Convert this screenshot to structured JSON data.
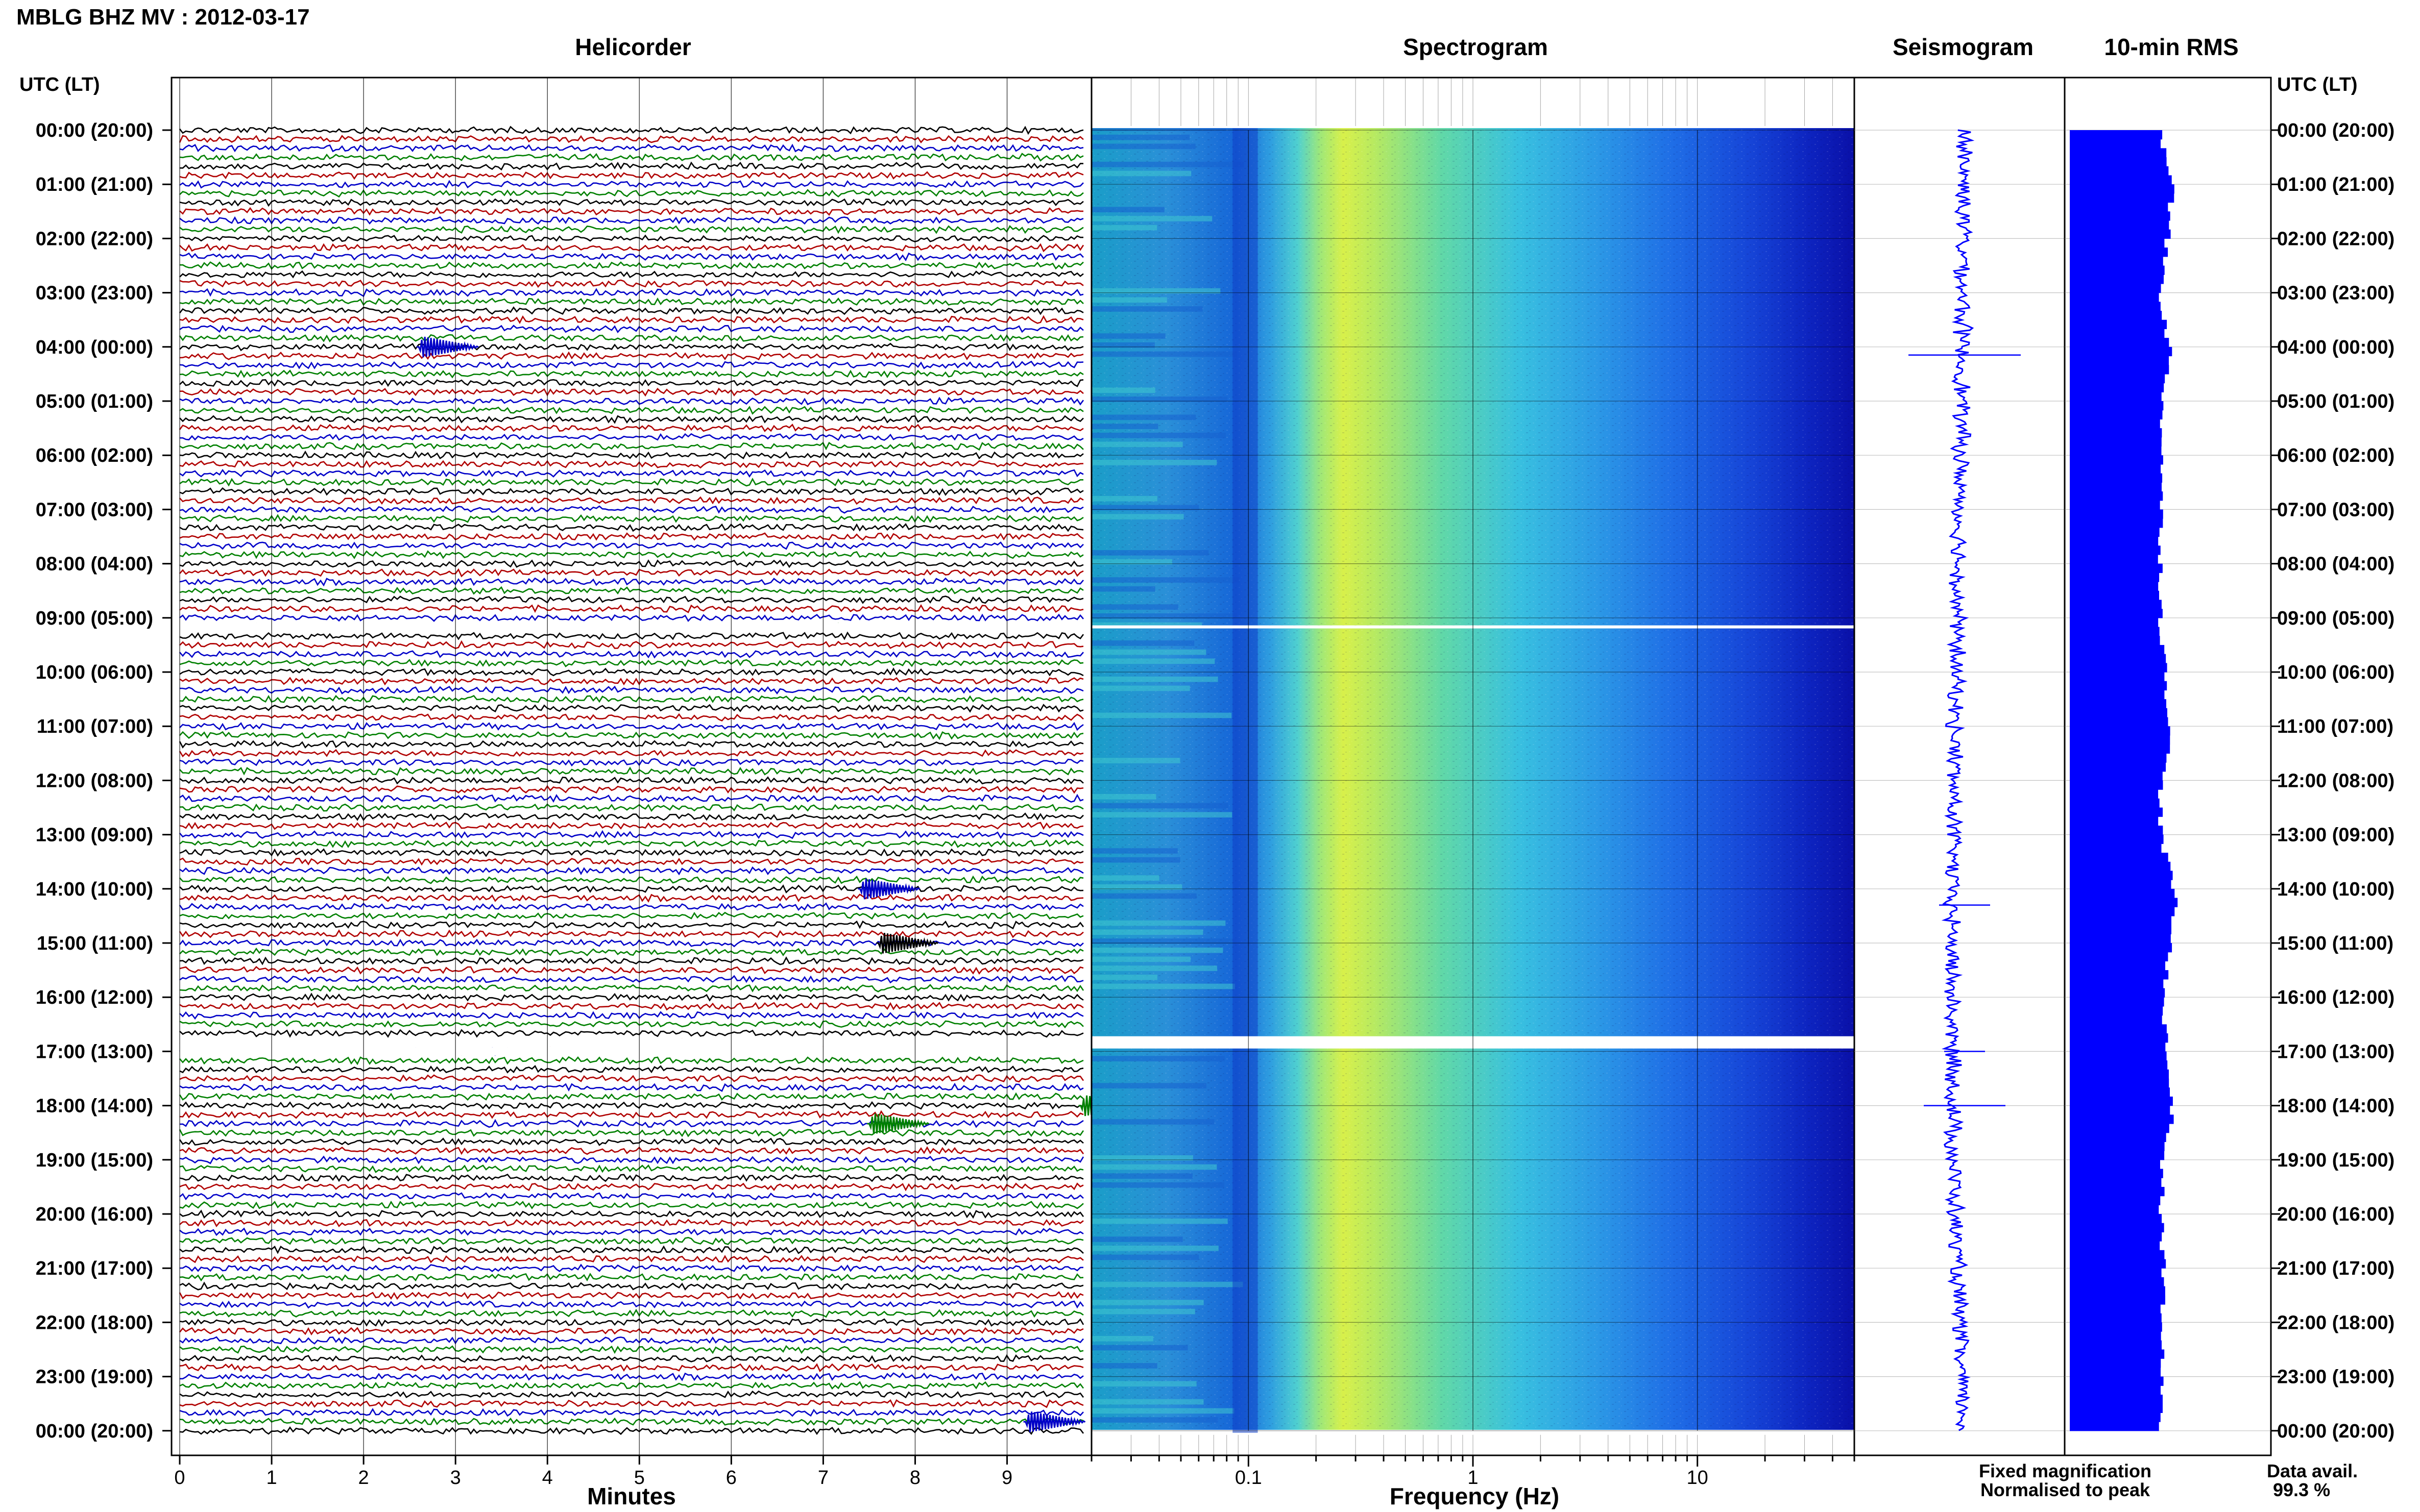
{
  "page": {
    "title": "MBLG BHZ MV : 2012-03-17",
    "utc_label": "UTC (LT)"
  },
  "legend": {
    "fixed": "Fixed magnification",
    "fixed_color": "#0000ff",
    "norm": "Normalised to peak",
    "norm_color": "#ff0000",
    "avail_label": "Data avail.",
    "avail_value": "99.3 %"
  },
  "chart_data": [
    {
      "type": "line",
      "title": "Helicorder",
      "xlabel": "Minutes",
      "xlim": [
        0,
        10
      ],
      "xticks": [
        "0",
        "1",
        "2",
        "3",
        "4",
        "5",
        "6",
        "7",
        "8",
        "9"
      ],
      "trace_colors": [
        "#000000",
        "#b00000",
        "#0000c8",
        "#008000"
      ],
      "trace_count": 145,
      "minutes_per_trace": 10,
      "gaps": [
        "~09:10",
        "~16:50–17:00"
      ],
      "events": [
        {
          "time": "04:00",
          "minute": 2.6,
          "color": "blue"
        },
        {
          "time": "14:00",
          "minute": 7.4,
          "color": "blue"
        },
        {
          "time": "15:00",
          "minute": 7.6,
          "color": "black"
        },
        {
          "time": "18:00",
          "minute": 9.8,
          "color": "green"
        },
        {
          "time": "18:20",
          "minute": 7.5,
          "color": "green"
        },
        {
          "time": "23:50",
          "minute": 9.2,
          "color": "blue"
        }
      ]
    },
    {
      "type": "heatmap",
      "title": "Spectrogram",
      "xlabel": "Frequency (Hz)",
      "xscale": "log",
      "xlim": [
        0.02,
        50
      ],
      "xticks": [
        "0.1",
        "1",
        "10"
      ],
      "colormap": "jet (dark blue low → cyan → yellow high)",
      "peak_band_hz": [
        0.15,
        0.5
      ]
    },
    {
      "type": "line",
      "title": "Seismogram",
      "orientation": "vertical",
      "color": "#0000ff"
    },
    {
      "type": "bar",
      "title": "10-min RMS",
      "orientation": "horizontal",
      "color": "#0000ff",
      "relative_values_per_hour": [
        0.62,
        0.7,
        0.66,
        0.62,
        0.68,
        0.63,
        0.63,
        0.62,
        0.62,
        0.62,
        0.65,
        0.69,
        0.62,
        0.62,
        0.72,
        0.68,
        0.64,
        0.66,
        0.7,
        0.63,
        0.62,
        0.64,
        0.63,
        0.62,
        0.62
      ]
    }
  ],
  "time_labels": [
    "00:00 (20:00)",
    "01:00 (21:00)",
    "02:00 (22:00)",
    "03:00 (23:00)",
    "04:00 (00:00)",
    "05:00 (01:00)",
    "06:00 (02:00)",
    "07:00 (03:00)",
    "08:00 (04:00)",
    "09:00 (05:00)",
    "10:00 (06:00)",
    "11:00 (07:00)",
    "12:00 (08:00)",
    "13:00 (09:00)",
    "14:00 (10:00)",
    "15:00 (11:00)",
    "16:00 (12:00)",
    "17:00 (13:00)",
    "18:00 (14:00)",
    "19:00 (15:00)",
    "20:00 (16:00)",
    "21:00 (17:00)",
    "22:00 (18:00)",
    "23:00 (19:00)",
    "00:00 (20:00)"
  ]
}
